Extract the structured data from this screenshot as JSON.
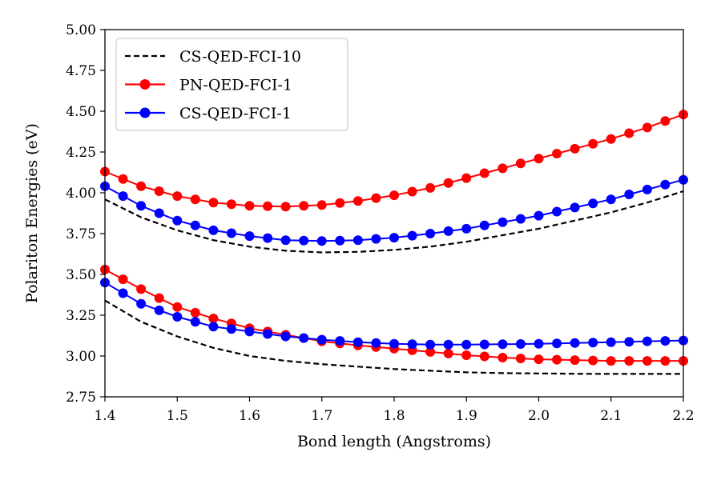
{
  "chart_data": {
    "type": "line",
    "title": "",
    "xlabel": "Bond length (Angstroms)",
    "ylabel": "Polariton Energies (eV)",
    "xlim": [
      1.4,
      2.2
    ],
    "ylim": [
      2.75,
      5.0
    ],
    "xticks": [
      "1.4",
      "1.5",
      "1.6",
      "1.7",
      "1.8",
      "1.9",
      "2.0",
      "2.1",
      "2.2"
    ],
    "yticks": [
      "2.75",
      "3.00",
      "3.25",
      "3.50",
      "3.75",
      "4.00",
      "4.25",
      "4.50",
      "4.75",
      "5.00"
    ],
    "grid": false,
    "legend_position": "top-left",
    "series": [
      {
        "name": "CS-QED-FCI-10",
        "color": "#000000",
        "style": "dashed",
        "marker": "none",
        "branches": [
          {
            "x": [
              1.4,
              1.45,
              1.5,
              1.55,
              1.6,
              1.65,
              1.7,
              1.75,
              1.8,
              1.85,
              1.9,
              1.95,
              2.0,
              2.05,
              2.1,
              2.15,
              2.2
            ],
            "y": [
              3.96,
              3.85,
              3.77,
              3.71,
              3.67,
              3.645,
              3.635,
              3.638,
              3.65,
              3.67,
              3.7,
              3.74,
              3.78,
              3.83,
              3.88,
              3.94,
              4.01
            ]
          },
          {
            "x": [
              1.4,
              1.45,
              1.5,
              1.55,
              1.6,
              1.65,
              1.7,
              1.75,
              1.8,
              1.85,
              1.9,
              1.95,
              2.0,
              2.05,
              2.1,
              2.15,
              2.2
            ],
            "y": [
              3.34,
              3.21,
              3.12,
              3.05,
              3.0,
              2.97,
              2.95,
              2.935,
              2.92,
              2.91,
              2.9,
              2.895,
              2.893,
              2.891,
              2.89,
              2.89,
              2.89
            ]
          }
        ]
      },
      {
        "name": "PN-QED-FCI-1",
        "color": "#ff0000",
        "style": "solid",
        "marker": "circle",
        "branches": [
          {
            "x": [
              1.4,
              1.45,
              1.5,
              1.55,
              1.6,
              1.65,
              1.7,
              1.75,
              1.8,
              1.85,
              1.9,
              1.95,
              2.0,
              2.05,
              2.1,
              2.15,
              2.2
            ],
            "y": [
              4.13,
              4.04,
              3.98,
              3.94,
              3.92,
              3.915,
              3.925,
              3.95,
              3.985,
              4.03,
              4.09,
              4.15,
              4.21,
              4.27,
              4.33,
              4.4,
              4.48
            ]
          },
          {
            "x": [
              1.4,
              1.45,
              1.5,
              1.55,
              1.6,
              1.65,
              1.7,
              1.75,
              1.8,
              1.85,
              1.9,
              1.95,
              2.0,
              2.05,
              2.1,
              2.15,
              2.2
            ],
            "y": [
              3.53,
              3.41,
              3.3,
              3.23,
              3.17,
              3.13,
              3.09,
              3.065,
              3.045,
              3.025,
              3.005,
              2.99,
              2.98,
              2.975,
              2.97,
              2.97,
              2.97
            ]
          }
        ]
      },
      {
        "name": "CS-QED-FCI-1",
        "color": "#0000ff",
        "style": "solid",
        "marker": "circle",
        "branches": [
          {
            "x": [
              1.4,
              1.45,
              1.5,
              1.55,
              1.6,
              1.65,
              1.7,
              1.75,
              1.8,
              1.85,
              1.9,
              1.95,
              2.0,
              2.05,
              2.1,
              2.15,
              2.2
            ],
            "y": [
              4.04,
              3.92,
              3.83,
              3.77,
              3.735,
              3.71,
              3.705,
              3.71,
              3.725,
              3.75,
              3.78,
              3.82,
              3.86,
              3.91,
              3.96,
              4.02,
              4.08
            ]
          },
          {
            "x": [
              1.4,
              1.45,
              1.5,
              1.55,
              1.6,
              1.65,
              1.7,
              1.75,
              1.8,
              1.85,
              1.9,
              1.95,
              2.0,
              2.05,
              2.1,
              2.15,
              2.2
            ],
            "y": [
              3.45,
              3.32,
              3.24,
              3.18,
              3.15,
              3.12,
              3.1,
              3.085,
              3.075,
              3.07,
              3.07,
              3.072,
              3.075,
              3.08,
              3.085,
              3.09,
              3.095
            ]
          }
        ]
      }
    ]
  }
}
